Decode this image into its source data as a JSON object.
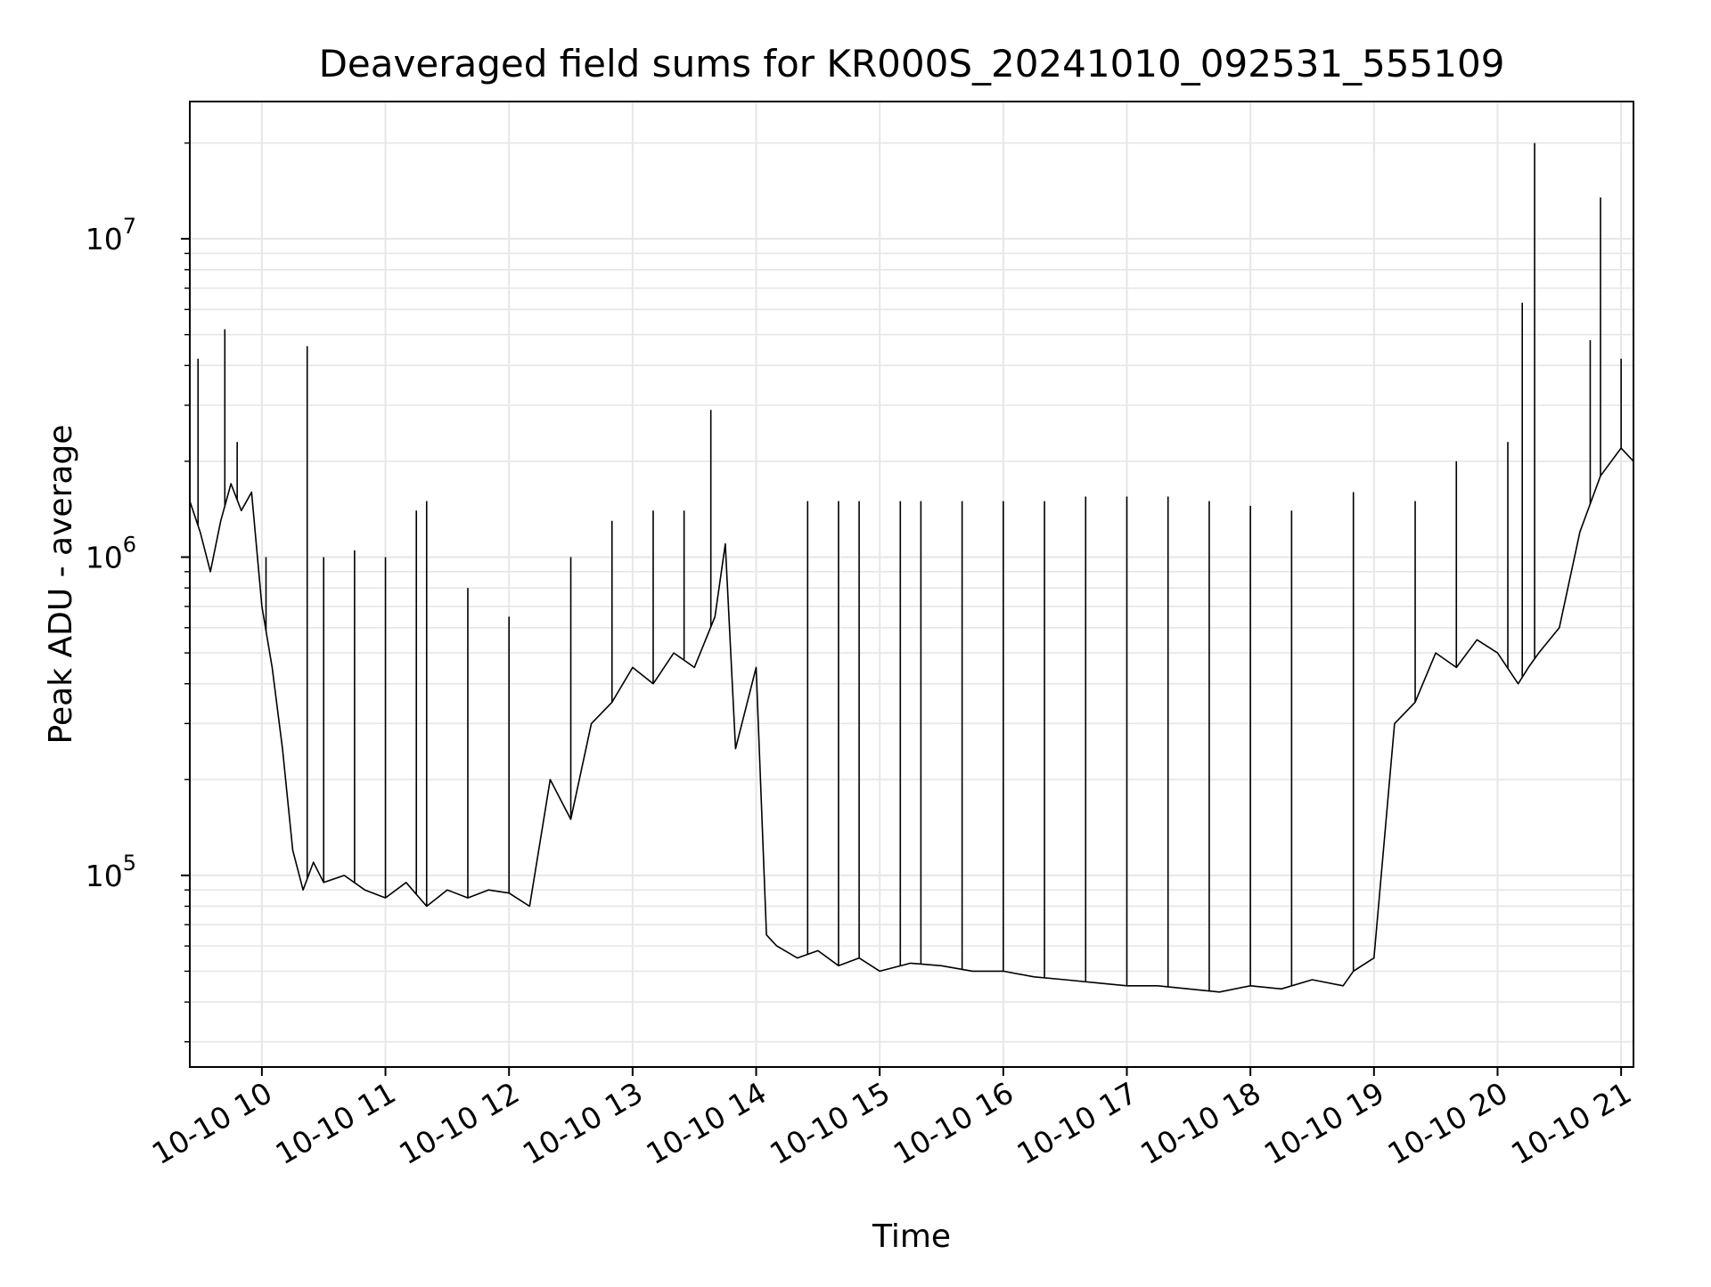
{
  "chart_data": {
    "type": "line",
    "title": "Deaveraged field sums for KR000S_20241010_092531_555109",
    "xlabel": "Time",
    "ylabel": "Peak ADU - average",
    "yscale": "log",
    "grid": true,
    "xlim": [
      "2024-10-10 09:25",
      "2024-10-10 21:06"
    ],
    "ylim": [
      25000,
      27000000
    ],
    "x_ticks": [
      "10-10 10",
      "10-10 11",
      "10-10 12",
      "10-10 13",
      "10-10 14",
      "10-10 15",
      "10-10 16",
      "10-10 17",
      "10-10 18",
      "10-10 19",
      "10-10 20",
      "10-10 21"
    ],
    "y_ticks": [
      {
        "base": "10",
        "exp": "5",
        "value": 100000
      },
      {
        "base": "10",
        "exp": "6",
        "value": 1000000
      },
      {
        "base": "10",
        "exp": "7",
        "value": 10000000
      }
    ],
    "line_color": "#000000",
    "series": [
      {
        "name": "",
        "x": [
          "09:25",
          "09:30",
          "09:35",
          "09:40",
          "09:45",
          "09:50",
          "09:55",
          "10:00",
          "10:05",
          "10:10",
          "10:15",
          "10:20",
          "10:25",
          "10:30",
          "10:40",
          "10:50",
          "11:00",
          "11:10",
          "11:20",
          "11:30",
          "11:40",
          "11:50",
          "12:00",
          "12:10",
          "12:20",
          "12:30",
          "12:40",
          "12:50",
          "13:00",
          "13:10",
          "13:20",
          "13:30",
          "13:40",
          "13:45",
          "13:50",
          "14:00",
          "14:05",
          "14:10",
          "14:20",
          "14:30",
          "14:40",
          "14:50",
          "15:00",
          "15:15",
          "15:30",
          "15:45",
          "16:00",
          "16:15",
          "16:30",
          "16:45",
          "17:00",
          "17:15",
          "17:30",
          "17:45",
          "18:00",
          "18:15",
          "18:30",
          "18:45",
          "18:50",
          "19:00",
          "19:10",
          "19:20",
          "19:30",
          "19:40",
          "19:50",
          "20:00",
          "20:10",
          "20:15",
          "20:20",
          "20:30",
          "20:40",
          "20:50",
          "21:00",
          "21:06"
        ],
        "y": [
          1500000,
          1200000,
          900000,
          1300000,
          1700000,
          1400000,
          1600000,
          700000,
          450000,
          250000,
          120000,
          90000,
          110000,
          95000,
          100000,
          90000,
          85000,
          95000,
          80000,
          90000,
          85000,
          90000,
          88000,
          80000,
          200000,
          150000,
          300000,
          350000,
          450000,
          400000,
          500000,
          450000,
          650000,
          1100000,
          250000,
          450000,
          65000,
          60000,
          55000,
          58000,
          52000,
          55000,
          50000,
          53000,
          52000,
          50000,
          50000,
          48000,
          47000,
          46000,
          45000,
          45000,
          44000,
          43000,
          45000,
          44000,
          47000,
          45000,
          50000,
          55000,
          300000,
          350000,
          500000,
          450000,
          550000,
          500000,
          400000,
          450000,
          500000,
          600000,
          1200000,
          1800000,
          2200000,
          2000000
        ]
      }
    ],
    "spikes": [
      {
        "x": "09:29",
        "y": 4200000
      },
      {
        "x": "09:42",
        "y": 5200000
      },
      {
        "x": "09:48",
        "y": 2300000
      },
      {
        "x": "10:02",
        "y": 1000000
      },
      {
        "x": "10:22",
        "y": 4600000
      },
      {
        "x": "10:30",
        "y": 1000000
      },
      {
        "x": "10:45",
        "y": 1050000
      },
      {
        "x": "11:00",
        "y": 1000000
      },
      {
        "x": "11:15",
        "y": 1400000
      },
      {
        "x": "11:20",
        "y": 1500000
      },
      {
        "x": "11:40",
        "y": 800000
      },
      {
        "x": "12:00",
        "y": 650000
      },
      {
        "x": "12:30",
        "y": 1000000
      },
      {
        "x": "12:50",
        "y": 1300000
      },
      {
        "x": "13:10",
        "y": 1400000
      },
      {
        "x": "13:25",
        "y": 1400000
      },
      {
        "x": "13:38",
        "y": 2900000
      },
      {
        "x": "14:25",
        "y": 1500000
      },
      {
        "x": "14:40",
        "y": 1500000
      },
      {
        "x": "14:50",
        "y": 1500000
      },
      {
        "x": "15:10",
        "y": 1500000
      },
      {
        "x": "15:20",
        "y": 1500000
      },
      {
        "x": "15:40",
        "y": 1500000
      },
      {
        "x": "16:00",
        "y": 1500000
      },
      {
        "x": "16:20",
        "y": 1500000
      },
      {
        "x": "16:40",
        "y": 1550000
      },
      {
        "x": "17:00",
        "y": 1550000
      },
      {
        "x": "17:20",
        "y": 1550000
      },
      {
        "x": "17:40",
        "y": 1500000
      },
      {
        "x": "18:00",
        "y": 1450000
      },
      {
        "x": "18:20",
        "y": 1400000
      },
      {
        "x": "18:50",
        "y": 1600000
      },
      {
        "x": "19:20",
        "y": 1500000
      },
      {
        "x": "19:40",
        "y": 2000000
      },
      {
        "x": "20:05",
        "y": 2300000
      },
      {
        "x": "20:12",
        "y": 6300000
      },
      {
        "x": "20:18",
        "y": 20000000
      },
      {
        "x": "20:45",
        "y": 4800000
      },
      {
        "x": "20:50",
        "y": 13500000
      },
      {
        "x": "21:00",
        "y": 4200000
      }
    ]
  }
}
